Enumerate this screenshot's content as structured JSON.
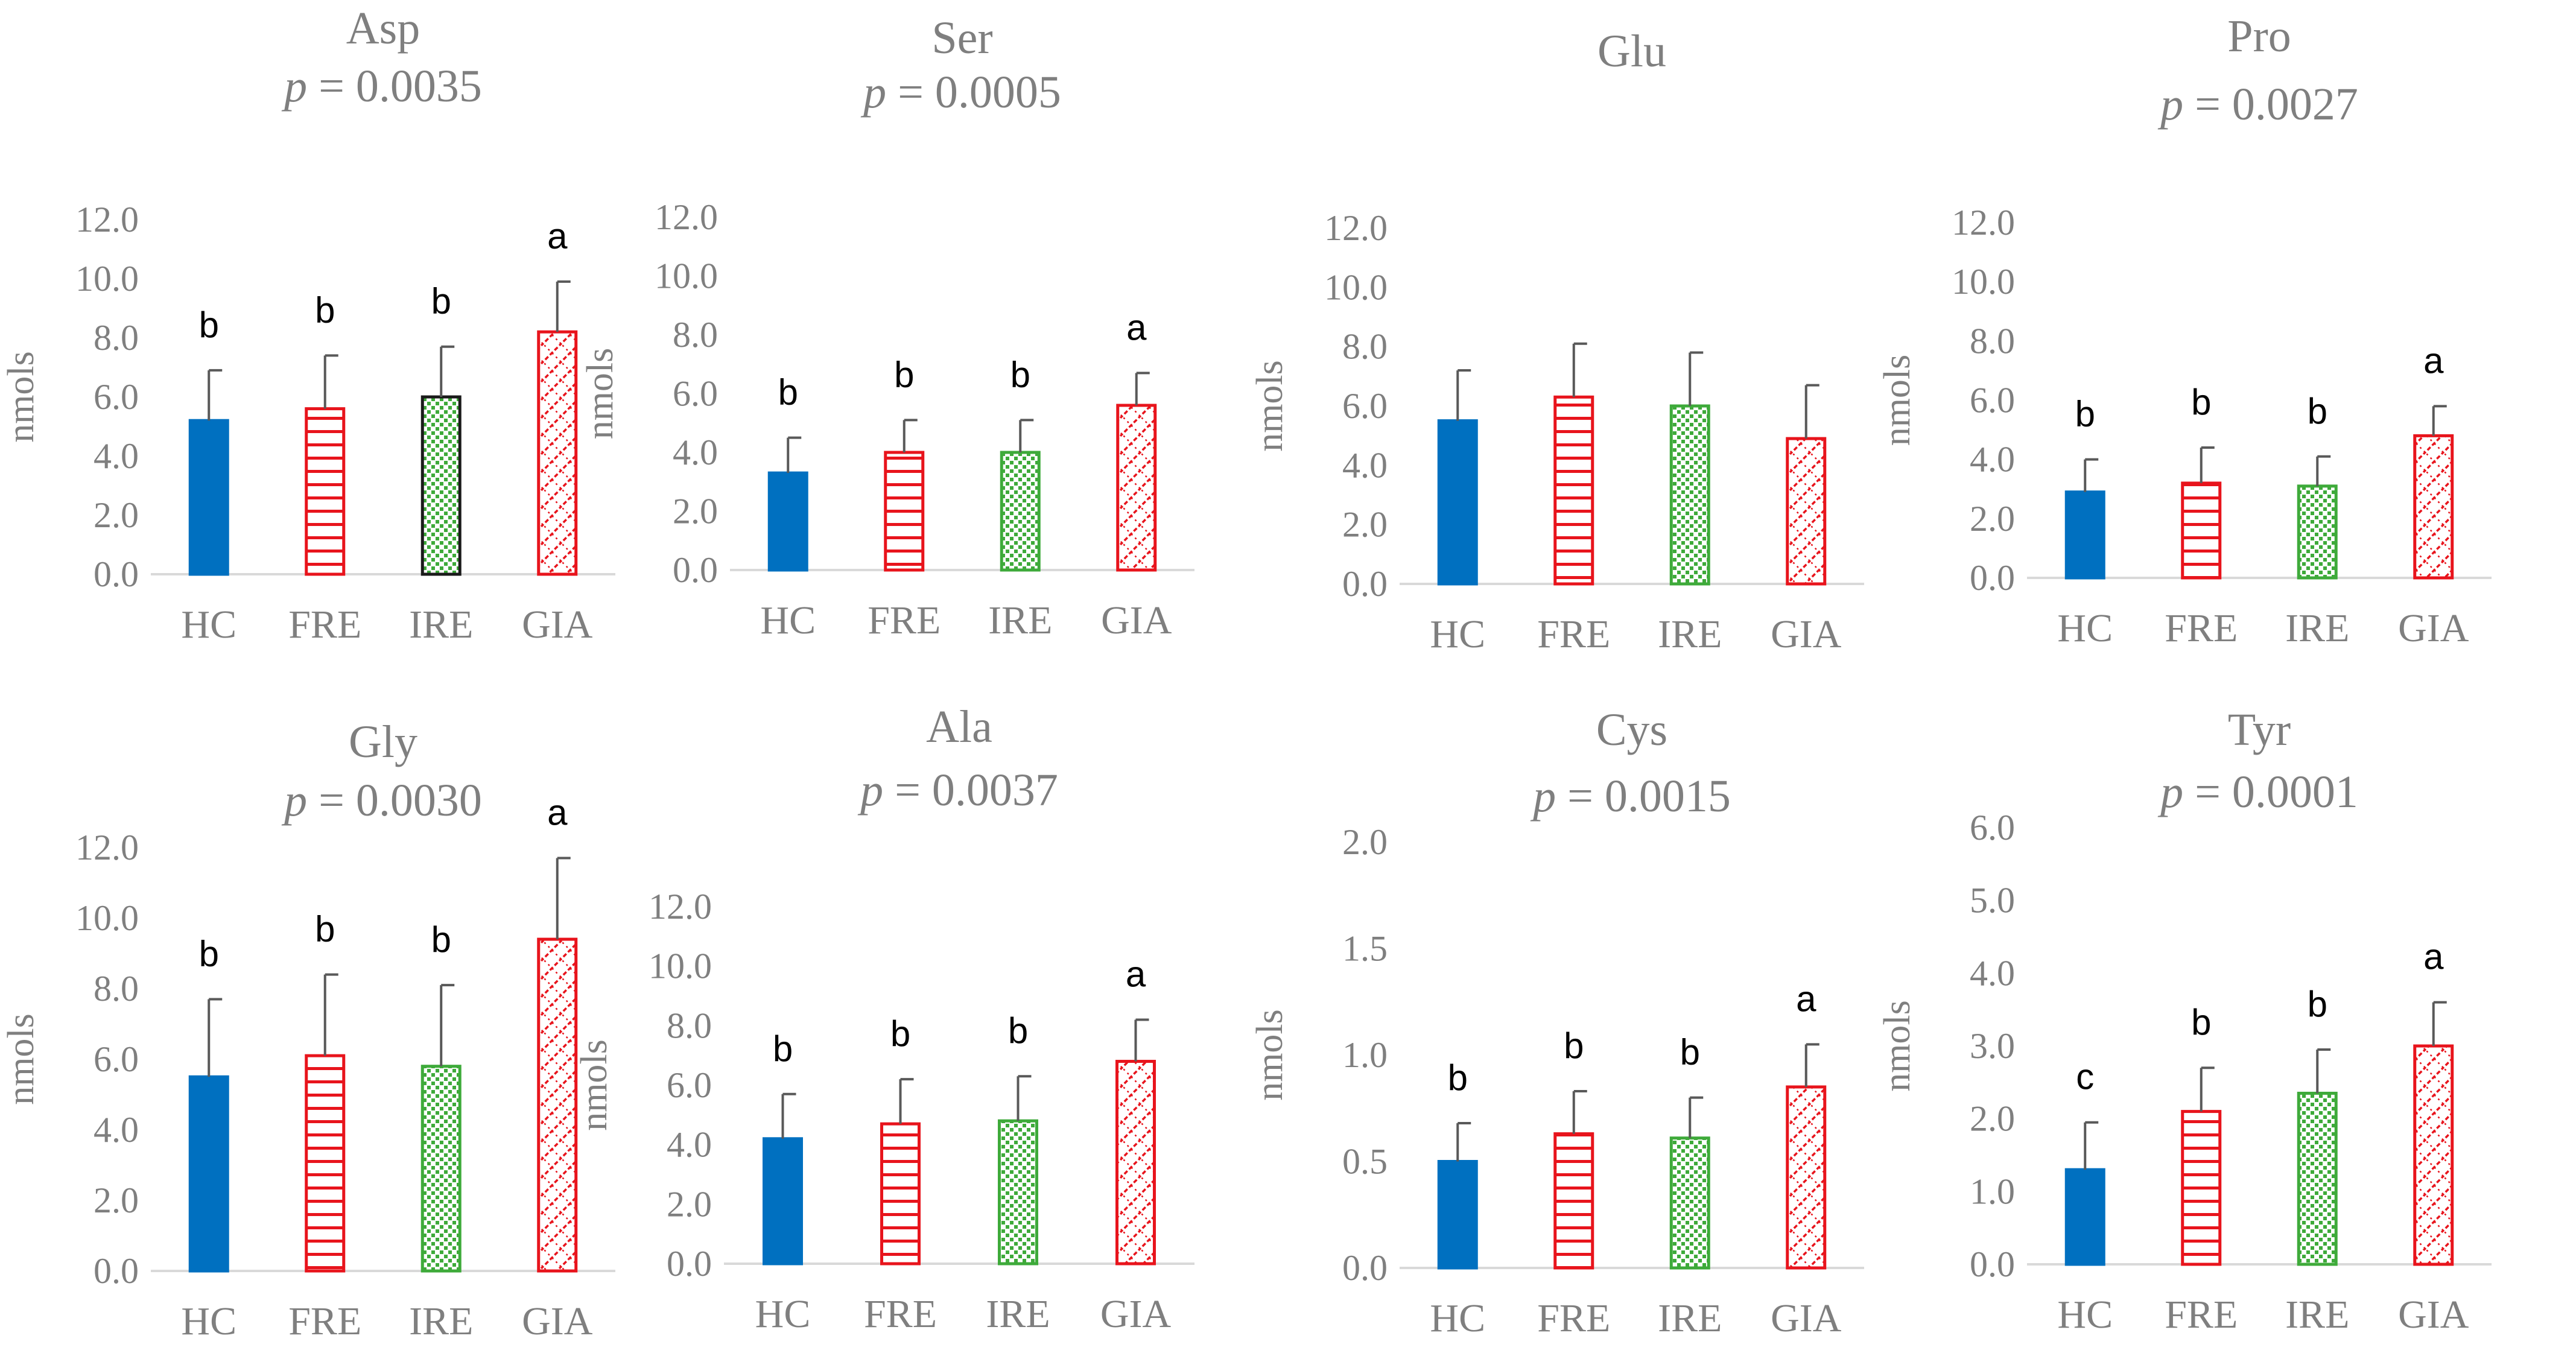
{
  "figure": {
    "ylabel": "nmols",
    "categories": [
      "HC",
      "FRE",
      "IRE",
      "GIA"
    ]
  },
  "colors": {
    "hc": "#0070C0",
    "red": "#E8141C",
    "green": "#3EAA3A",
    "ire_border": "#1a1a1a",
    "axis": "#d9d9d9",
    "text": "#7f7f7f",
    "error": "#595959"
  },
  "chart_data": [
    {
      "type": "bar",
      "title": "Asp",
      "pvalue": "0.0035",
      "ylabel": "nmols",
      "ylim": [
        0,
        12
      ],
      "tick_step": 2,
      "tick_decimals": 1,
      "categories": [
        "HC",
        "FRE",
        "IRE",
        "GIA"
      ],
      "values": [
        5.2,
        5.6,
        6.0,
        8.2
      ],
      "errors": [
        1.7,
        1.8,
        1.7,
        1.7
      ],
      "letters": [
        "b",
        "b",
        "b",
        "a"
      ]
    },
    {
      "type": "bar",
      "title": "Ser",
      "pvalue": "0.0005",
      "ylabel": "nmols",
      "ylim": [
        0,
        12
      ],
      "tick_step": 2,
      "tick_decimals": 1,
      "categories": [
        "HC",
        "FRE",
        "IRE",
        "GIA"
      ],
      "values": [
        3.3,
        4.0,
        4.0,
        5.6
      ],
      "errors": [
        1.2,
        1.1,
        1.1,
        1.1
      ],
      "letters": [
        "b",
        "b",
        "b",
        "a"
      ]
    },
    {
      "type": "bar",
      "title": "Glu",
      "pvalue": null,
      "ylabel": "nmols",
      "ylim": [
        0,
        12
      ],
      "tick_step": 2,
      "tick_decimals": 1,
      "categories": [
        "HC",
        "FRE",
        "IRE",
        "GIA"
      ],
      "values": [
        5.5,
        6.3,
        6.0,
        4.9
      ],
      "errors": [
        1.7,
        1.8,
        1.8,
        1.8
      ],
      "letters": [
        "",
        "",
        "",
        ""
      ]
    },
    {
      "type": "bar",
      "title": "Pro",
      "pvalue": "0.0027",
      "ylabel": "nmols",
      "ylim": [
        0,
        12
      ],
      "tick_step": 2,
      "tick_decimals": 1,
      "categories": [
        "HC",
        "FRE",
        "IRE",
        "GIA"
      ],
      "values": [
        2.9,
        3.2,
        3.1,
        4.8
      ],
      "errors": [
        1.1,
        1.2,
        1.0,
        1.0
      ],
      "letters": [
        "b",
        "b",
        "b",
        "a"
      ]
    },
    {
      "type": "bar",
      "title": "Gly",
      "pvalue": "0.0030",
      "ylabel": "nmols",
      "ylim": [
        0,
        12
      ],
      "tick_step": 2,
      "tick_decimals": 1,
      "categories": [
        "HC",
        "FRE",
        "IRE",
        "GIA"
      ],
      "values": [
        5.5,
        6.1,
        5.8,
        9.4
      ],
      "errors": [
        2.2,
        2.3,
        2.3,
        2.3
      ],
      "letters": [
        "b",
        "b",
        "b",
        "a"
      ]
    },
    {
      "type": "bar",
      "title": "Ala",
      "pvalue": "0.0037",
      "ylabel": "nmols",
      "ylim": [
        0,
        12
      ],
      "tick_step": 2,
      "tick_decimals": 1,
      "categories": [
        "HC",
        "FRE",
        "IRE",
        "GIA"
      ],
      "values": [
        4.2,
        4.7,
        4.8,
        6.8
      ],
      "errors": [
        1.5,
        1.5,
        1.5,
        1.4
      ],
      "letters": [
        "b",
        "b",
        "b",
        "a"
      ]
    },
    {
      "type": "bar",
      "title": "Cys",
      "pvalue": "0.0015",
      "ylabel": "nmols",
      "ylim": [
        0,
        2
      ],
      "tick_step": 0.5,
      "tick_decimals": 1,
      "categories": [
        "HC",
        "FRE",
        "IRE",
        "GIA"
      ],
      "values": [
        0.5,
        0.63,
        0.61,
        0.85
      ],
      "errors": [
        0.18,
        0.2,
        0.19,
        0.2
      ],
      "letters": [
        "b",
        "b",
        "b",
        "a"
      ]
    },
    {
      "type": "bar",
      "title": "Tyr",
      "pvalue": "0.0001",
      "ylabel": "nmols",
      "ylim": [
        0,
        6
      ],
      "tick_step": 1,
      "tick_decimals": 1,
      "categories": [
        "HC",
        "FRE",
        "IRE",
        "GIA"
      ],
      "values": [
        1.3,
        2.1,
        2.35,
        3.0
      ],
      "errors": [
        0.65,
        0.6,
        0.6,
        0.6
      ],
      "letters": [
        "c",
        "b",
        "b",
        "a"
      ]
    }
  ]
}
